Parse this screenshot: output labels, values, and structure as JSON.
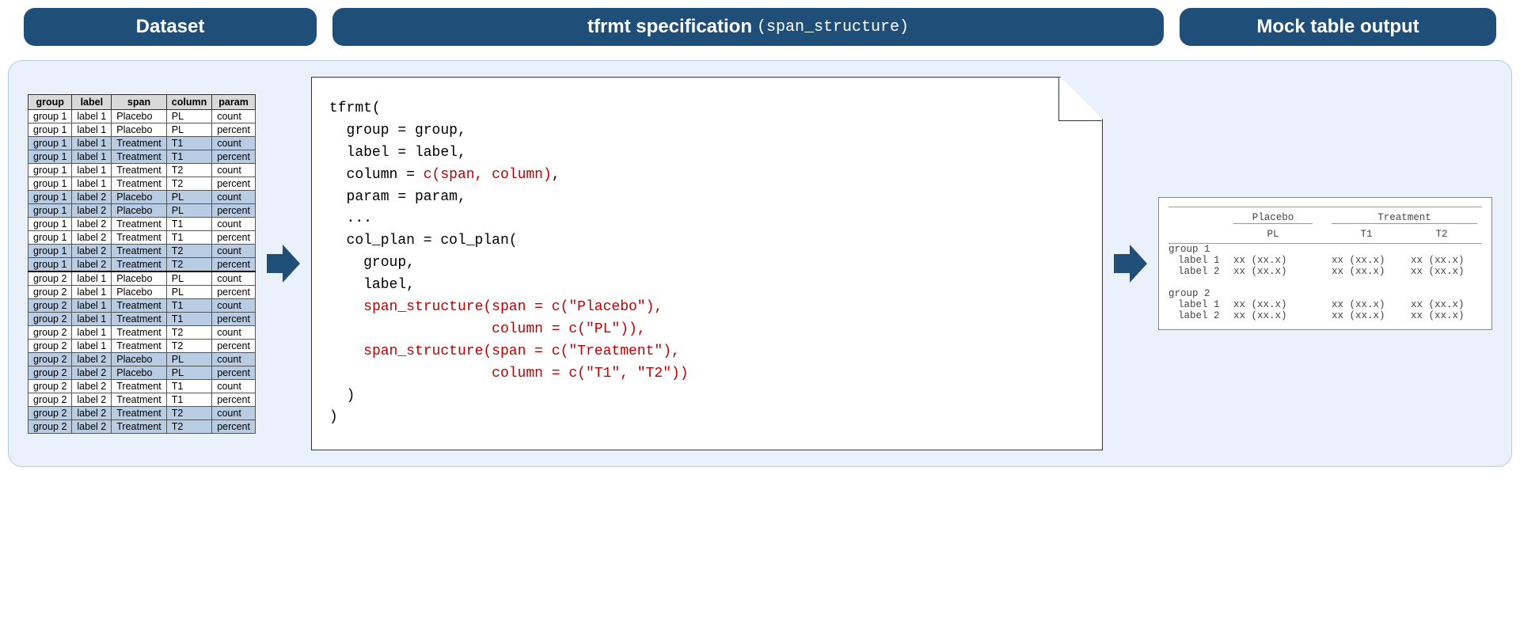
{
  "headers": {
    "dataset": "Dataset",
    "spec_main": "tfrmt specification",
    "spec_sub": "(span_structure)",
    "output": "Mock table output"
  },
  "colors": {
    "pill_bg": "#1f4e79",
    "pill_text": "#ffffff",
    "container_bg": "#eaf1fa",
    "container_border": "#b3cde3",
    "shaded_row": "#b8cce4",
    "code_highlight": "#c00000",
    "arrow_fill": "#1f4e79"
  },
  "dataset": {
    "columns": [
      "group",
      "label",
      "span",
      "column",
      "param"
    ],
    "rows": [
      {
        "cells": [
          "group 1",
          "label 1",
          "Placebo",
          "PL",
          "count"
        ],
        "shaded": false,
        "group_start": false
      },
      {
        "cells": [
          "group 1",
          "label 1",
          "Placebo",
          "PL",
          "percent"
        ],
        "shaded": false,
        "group_start": false
      },
      {
        "cells": [
          "group 1",
          "label 1",
          "Treatment",
          "T1",
          "count"
        ],
        "shaded": true,
        "group_start": false
      },
      {
        "cells": [
          "group 1",
          "label 1",
          "Treatment",
          "T1",
          "percent"
        ],
        "shaded": true,
        "group_start": false
      },
      {
        "cells": [
          "group 1",
          "label 1",
          "Treatment",
          "T2",
          "count"
        ],
        "shaded": false,
        "group_start": false
      },
      {
        "cells": [
          "group 1",
          "label 1",
          "Treatment",
          "T2",
          "percent"
        ],
        "shaded": false,
        "group_start": false
      },
      {
        "cells": [
          "group 1",
          "label 2",
          "Placebo",
          "PL",
          "count"
        ],
        "shaded": true,
        "group_start": false
      },
      {
        "cells": [
          "group 1",
          "label 2",
          "Placebo",
          "PL",
          "percent"
        ],
        "shaded": true,
        "group_start": false
      },
      {
        "cells": [
          "group 1",
          "label 2",
          "Treatment",
          "T1",
          "count"
        ],
        "shaded": false,
        "group_start": false
      },
      {
        "cells": [
          "group 1",
          "label 2",
          "Treatment",
          "T1",
          "percent"
        ],
        "shaded": false,
        "group_start": false
      },
      {
        "cells": [
          "group 1",
          "label 2",
          "Treatment",
          "T2",
          "count"
        ],
        "shaded": true,
        "group_start": false
      },
      {
        "cells": [
          "group 1",
          "label 2",
          "Treatment",
          "T2",
          "percent"
        ],
        "shaded": true,
        "group_start": false
      },
      {
        "cells": [
          "group 2",
          "label 1",
          "Placebo",
          "PL",
          "count"
        ],
        "shaded": false,
        "group_start": true
      },
      {
        "cells": [
          "group 2",
          "label 1",
          "Placebo",
          "PL",
          "percent"
        ],
        "shaded": false,
        "group_start": false
      },
      {
        "cells": [
          "group 2",
          "label 1",
          "Treatment",
          "T1",
          "count"
        ],
        "shaded": true,
        "group_start": false
      },
      {
        "cells": [
          "group 2",
          "label 1",
          "Treatment",
          "T1",
          "percent"
        ],
        "shaded": true,
        "group_start": false
      },
      {
        "cells": [
          "group 2",
          "label 1",
          "Treatment",
          "T2",
          "count"
        ],
        "shaded": false,
        "group_start": false
      },
      {
        "cells": [
          "group 2",
          "label 1",
          "Treatment",
          "T2",
          "percent"
        ],
        "shaded": false,
        "group_start": false
      },
      {
        "cells": [
          "group 2",
          "label 2",
          "Placebo",
          "PL",
          "count"
        ],
        "shaded": true,
        "group_start": false
      },
      {
        "cells": [
          "group 2",
          "label 2",
          "Placebo",
          "PL",
          "percent"
        ],
        "shaded": true,
        "group_start": false
      },
      {
        "cells": [
          "group 2",
          "label 2",
          "Treatment",
          "T1",
          "count"
        ],
        "shaded": false,
        "group_start": false
      },
      {
        "cells": [
          "group 2",
          "label 2",
          "Treatment",
          "T1",
          "percent"
        ],
        "shaded": false,
        "group_start": false
      },
      {
        "cells": [
          "group 2",
          "label 2",
          "Treatment",
          "T2",
          "count"
        ],
        "shaded": true,
        "group_start": false
      },
      {
        "cells": [
          "group 2",
          "label 2",
          "Treatment",
          "T2",
          "percent"
        ],
        "shaded": true,
        "group_start": false
      }
    ]
  },
  "code": {
    "lines": [
      {
        "segments": [
          {
            "text": "tfrmt(",
            "red": false
          }
        ]
      },
      {
        "segments": [
          {
            "text": "  group = group,",
            "red": false
          }
        ]
      },
      {
        "segments": [
          {
            "text": "  label = label,",
            "red": false
          }
        ]
      },
      {
        "segments": [
          {
            "text": "  column = ",
            "red": false
          },
          {
            "text": "c(span, column)",
            "red": true
          },
          {
            "text": ",",
            "red": false
          }
        ]
      },
      {
        "segments": [
          {
            "text": "  param = param,",
            "red": false
          }
        ]
      },
      {
        "segments": [
          {
            "text": "  ...",
            "red": false
          }
        ]
      },
      {
        "segments": [
          {
            "text": "  col_plan = col_plan(",
            "red": false
          }
        ]
      },
      {
        "segments": [
          {
            "text": "    group,",
            "red": false
          }
        ]
      },
      {
        "segments": [
          {
            "text": "    label,",
            "red": false
          }
        ]
      },
      {
        "segments": [
          {
            "text": "    ",
            "red": false
          },
          {
            "text": "span_structure(span = c(\"Placebo\"),",
            "red": true
          }
        ]
      },
      {
        "segments": [
          {
            "text": "                   ",
            "red": false
          },
          {
            "text": "column = c(\"PL\")),",
            "red": true
          }
        ]
      },
      {
        "segments": [
          {
            "text": "    ",
            "red": false
          },
          {
            "text": "span_structure(span = c(\"Treatment\"),",
            "red": true
          }
        ]
      },
      {
        "segments": [
          {
            "text": "                   ",
            "red": false
          },
          {
            "text": "column = c(\"T1\", \"T2\"))",
            "red": true
          }
        ]
      },
      {
        "segments": [
          {
            "text": "  )",
            "red": false
          }
        ]
      },
      {
        "segments": [
          {
            "text": ")",
            "red": false
          }
        ]
      }
    ]
  },
  "mock": {
    "span_headers": {
      "placebo": "Placebo",
      "treatment": "Treatment"
    },
    "col_headers": {
      "pl": "PL",
      "t1": "T1",
      "t2": "T2"
    },
    "cell": "xx (xx.x)",
    "groups": [
      {
        "title": "group 1",
        "labels": [
          "label 1",
          "label 2"
        ]
      },
      {
        "title": "group 2",
        "labels": [
          "label 1",
          "label 2"
        ]
      }
    ]
  }
}
